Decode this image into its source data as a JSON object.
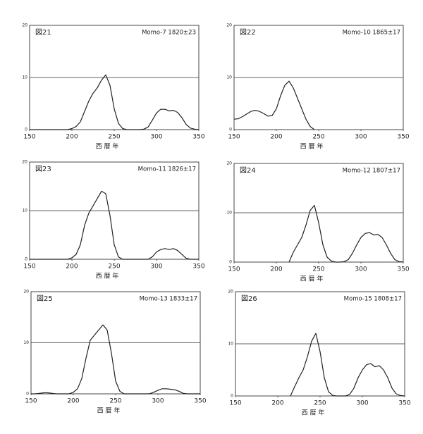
{
  "chart_data": [
    {
      "type": "line",
      "title": "図21",
      "subtitle": "Momo-7 1820±23",
      "xlabel": "西 暦 年",
      "x": [
        150,
        155,
        160,
        165,
        170,
        175,
        180,
        185,
        190,
        195,
        200,
        205,
        210,
        215,
        220,
        225,
        230,
        235,
        240,
        245,
        250,
        255,
        260,
        265,
        270,
        275,
        280,
        285,
        290,
        295,
        300,
        305,
        310,
        315,
        320,
        325,
        330,
        335,
        340,
        345,
        350
      ],
      "values": [
        0,
        0,
        0,
        0,
        0,
        0,
        0,
        0,
        0,
        0,
        0.2,
        0.6,
        1.5,
        3.5,
        5.5,
        7,
        8,
        9.5,
        10.5,
        8.5,
        4,
        1.2,
        0.2,
        0,
        0,
        0,
        0,
        0.1,
        0.5,
        1.8,
        3.2,
        3.9,
        3.9,
        3.6,
        3.7,
        3.3,
        2.3,
        1,
        0.3,
        0.1,
        0
      ],
      "color": "#222222",
      "xlim": [
        150,
        350
      ],
      "ylim": [
        0,
        20
      ],
      "xticks": [
        150,
        200,
        250,
        300,
        350
      ],
      "yticks": [
        0,
        10,
        20
      ],
      "grid": true
    },
    {
      "type": "line",
      "title": "図22",
      "subtitle": "Momo-10 1865±17",
      "xlabel": "西 暦 年",
      "x": [
        150,
        155,
        160,
        165,
        170,
        175,
        180,
        185,
        190,
        195,
        200,
        205,
        210,
        215,
        220,
        225,
        230,
        235,
        240,
        245
      ],
      "values": [
        2,
        2.1,
        2.5,
        3,
        3.5,
        3.7,
        3.5,
        3.1,
        2.6,
        2.7,
        4,
        6.5,
        8.5,
        9.3,
        8,
        6,
        4,
        2,
        0.6,
        0
      ],
      "color": "#222222",
      "xlim": [
        150,
        350
      ],
      "ylim": [
        0,
        20
      ],
      "xticks": [
        150,
        200,
        250,
        300,
        350
      ],
      "yticks": [
        0,
        10,
        20
      ],
      "grid": true
    },
    {
      "type": "line",
      "title": "図23",
      "subtitle": "Momo-11 1826±17",
      "xlabel": "西 暦 年",
      "x": [
        150,
        155,
        160,
        165,
        170,
        175,
        180,
        185,
        190,
        195,
        200,
        205,
        210,
        215,
        220,
        225,
        230,
        235,
        240,
        245,
        250,
        255,
        260,
        265,
        270,
        275,
        280,
        285,
        290,
        295,
        300,
        305,
        310,
        315,
        320,
        325,
        330,
        335,
        340,
        345,
        350
      ],
      "values": [
        0,
        0,
        0,
        0,
        0,
        0,
        0,
        0,
        0,
        0,
        0.3,
        1,
        3,
        7,
        9.5,
        11,
        12.5,
        14,
        13.5,
        9,
        3,
        0.5,
        0,
        0,
        0,
        0,
        0,
        0,
        0,
        0.5,
        1.5,
        2,
        2.2,
        2,
        2.2,
        1.8,
        1,
        0.2,
        0,
        0,
        0
      ],
      "color": "#222222",
      "xlim": [
        150,
        350
      ],
      "ylim": [
        0,
        20
      ],
      "xticks": [
        150,
        200,
        250,
        300,
        350
      ],
      "yticks": [
        0,
        10,
        20
      ],
      "grid": true
    },
    {
      "type": "line",
      "title": "図24",
      "subtitle": "Momo-12 1807±17",
      "xlabel": "西 暦 年",
      "x": [
        215,
        220,
        225,
        230,
        235,
        240,
        245,
        250,
        255,
        260,
        265,
        270,
        275,
        280,
        285,
        290,
        295,
        300,
        305,
        310,
        315,
        320,
        325,
        330,
        335,
        340,
        345,
        350
      ],
      "values": [
        0,
        2,
        3.5,
        5,
        7.5,
        10.5,
        11.5,
        8,
        3.5,
        1,
        0.2,
        0,
        0,
        0.1,
        0.5,
        1.8,
        3.5,
        5,
        5.8,
        6,
        5.5,
        5.6,
        5,
        3.5,
        1.8,
        0.5,
        0.1,
        0
      ],
      "color": "#222222",
      "xlim": [
        150,
        350
      ],
      "ylim": [
        0,
        20
      ],
      "xticks": [
        150,
        200,
        250,
        300,
        350
      ],
      "yticks": [
        0,
        10,
        20
      ],
      "grid": true
    },
    {
      "type": "line",
      "title": "図25",
      "subtitle": "Momo-13 1833±17",
      "xlabel": "西 暦 年",
      "x": [
        150,
        155,
        160,
        165,
        170,
        175,
        180,
        185,
        190,
        195,
        200,
        205,
        210,
        215,
        220,
        225,
        230,
        235,
        240,
        245,
        250,
        255,
        260,
        265,
        270,
        275,
        280,
        285,
        290,
        295,
        300,
        305,
        310,
        315,
        320,
        325,
        330,
        335,
        340,
        345,
        350
      ],
      "values": [
        0,
        0,
        0.1,
        0.2,
        0.2,
        0.1,
        0,
        0,
        0,
        0,
        0.3,
        1,
        3,
        7,
        10.5,
        11.5,
        12.5,
        13.5,
        12.5,
        8,
        2.5,
        0.5,
        0,
        0,
        0,
        0,
        0,
        0,
        0,
        0.3,
        0.7,
        1,
        1,
        0.9,
        0.8,
        0.5,
        0.1,
        0,
        0,
        0,
        0
      ],
      "color": "#222222",
      "xlim": [
        150,
        350
      ],
      "ylim": [
        0,
        20
      ],
      "xticks": [
        150,
        200,
        250,
        300,
        350
      ],
      "yticks": [
        0,
        10,
        20
      ],
      "grid": true
    },
    {
      "type": "line",
      "title": "図26",
      "subtitle": "Momo-15 1808±17",
      "xlabel": "西 暦 年",
      "x": [
        215,
        220,
        225,
        230,
        235,
        240,
        245,
        250,
        255,
        260,
        265,
        270,
        275,
        280,
        285,
        290,
        295,
        300,
        305,
        310,
        315,
        320,
        325,
        330,
        335,
        340,
        345,
        350
      ],
      "values": [
        0,
        1.8,
        3.5,
        5,
        7.5,
        10.5,
        12,
        8.5,
        3.5,
        0.8,
        0.1,
        0,
        0,
        0,
        0.3,
        1.5,
        3.5,
        5,
        6,
        6.2,
        5.6,
        5.8,
        5,
        3.5,
        1.5,
        0.4,
        0.1,
        0
      ],
      "color": "#222222",
      "xlim": [
        150,
        350
      ],
      "ylim": [
        0,
        20
      ],
      "xticks": [
        150,
        200,
        250,
        300,
        350
      ],
      "yticks": [
        0,
        10,
        20
      ],
      "grid": true
    }
  ]
}
